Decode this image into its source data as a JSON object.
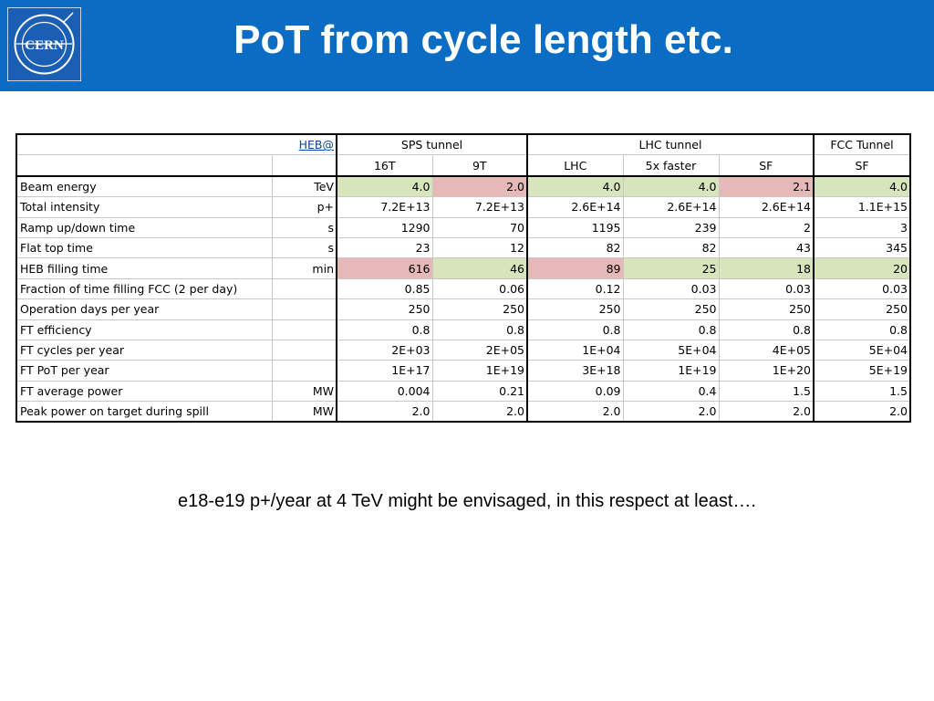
{
  "title": "PoT from cycle length etc.",
  "logo_text": "CERN",
  "colors": {
    "header_bg": "#0b6cc4",
    "green_cell": "#d8e4bc",
    "red_cell": "#e6b8b7",
    "link": "#0645ad"
  },
  "table": {
    "link_label": "HEB@",
    "groups": {
      "sps": "SPS tunnel",
      "lhc": "LHC tunnel",
      "fcc": "FCC Tunnel"
    },
    "columns": [
      "16T",
      "9T",
      "LHC",
      "5x faster",
      "SF",
      "SF"
    ],
    "rows": [
      {
        "label": "Beam energy",
        "unit": "TeV",
        "values": [
          "4.0",
          "2.0",
          "4.0",
          "4.0",
          "2.1",
          "4.0"
        ],
        "highlight": [
          "green",
          "red",
          "green",
          "green",
          "red",
          "green"
        ]
      },
      {
        "label": "Total intensity",
        "unit": "p+",
        "values": [
          "7.2E+13",
          "7.2E+13",
          "2.6E+14",
          "2.6E+14",
          "2.6E+14",
          "1.1E+15"
        ],
        "highlight": [
          "",
          "",
          "",
          "",
          "",
          ""
        ]
      },
      {
        "label": "Ramp up/down time",
        "unit": "s",
        "values": [
          "1290",
          "70",
          "1195",
          "239",
          "2",
          "3"
        ],
        "highlight": [
          "",
          "",
          "",
          "",
          "",
          ""
        ]
      },
      {
        "label": "Flat top time",
        "unit": "s",
        "values": [
          "23",
          "12",
          "82",
          "82",
          "43",
          "345"
        ],
        "highlight": [
          "",
          "",
          "",
          "",
          "",
          ""
        ]
      },
      {
        "label": "HEB filling time",
        "unit": "min",
        "values": [
          "616",
          "46",
          "89",
          "25",
          "18",
          "20"
        ],
        "highlight": [
          "red",
          "green",
          "red",
          "green",
          "green",
          "green"
        ]
      },
      {
        "label": "Fraction of time filling FCC (2 per day)",
        "unit": "",
        "values": [
          "0.85",
          "0.06",
          "0.12",
          "0.03",
          "0.03",
          "0.03"
        ],
        "highlight": [
          "",
          "",
          "",
          "",
          "",
          ""
        ]
      },
      {
        "label": "Operation days per year",
        "unit": "",
        "values": [
          "250",
          "250",
          "250",
          "250",
          "250",
          "250"
        ],
        "highlight": [
          "",
          "",
          "",
          "",
          "",
          ""
        ]
      },
      {
        "label": "FT efficiency",
        "unit": "",
        "values": [
          "0.8",
          "0.8",
          "0.8",
          "0.8",
          "0.8",
          "0.8"
        ],
        "highlight": [
          "",
          "",
          "",
          "",
          "",
          ""
        ]
      },
      {
        "label": "FT cycles per year",
        "unit": "",
        "values": [
          "2E+03",
          "2E+05",
          "1E+04",
          "5E+04",
          "4E+05",
          "5E+04"
        ],
        "highlight": [
          "",
          "",
          "",
          "",
          "",
          ""
        ]
      },
      {
        "label": "FT PoT per year",
        "unit": "",
        "values": [
          "1E+17",
          "1E+19",
          "3E+18",
          "1E+19",
          "1E+20",
          "5E+19"
        ],
        "highlight": [
          "",
          "",
          "",
          "",
          "",
          ""
        ]
      },
      {
        "label": "FT average power",
        "unit": "MW",
        "values": [
          "0.004",
          "0.21",
          "0.09",
          "0.4",
          "1.5",
          "1.5"
        ],
        "highlight": [
          "",
          "",
          "",
          "",
          "",
          ""
        ]
      },
      {
        "label": "Peak power on target during spill",
        "unit": "MW",
        "values": [
          "2.0",
          "2.0",
          "2.0",
          "2.0",
          "2.0",
          "2.0"
        ],
        "highlight": [
          "",
          "",
          "",
          "",
          "",
          ""
        ]
      }
    ]
  },
  "note": "e18-e19 p+/year at 4 TeV might be envisaged, in this respect at least…."
}
